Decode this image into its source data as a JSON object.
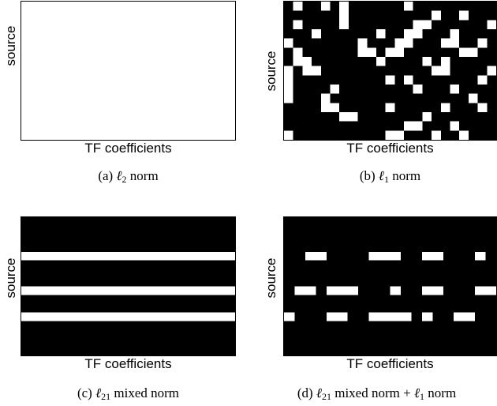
{
  "panels": [
    {
      "id": "a",
      "ylabel": "source",
      "xlabel": "TF coefficients",
      "caption": {
        "prefix": "(a)",
        "ell": "ℓ",
        "sub": "2",
        "rest": "norm"
      },
      "background": "#ffffff",
      "fill": "#000000",
      "grid": {
        "cols": 25,
        "rows": 16
      },
      "blocks": []
    },
    {
      "id": "b",
      "ylabel": "source",
      "xlabel": "TF coefficients",
      "caption": {
        "prefix": "(b)",
        "ell": "ℓ",
        "sub": "1",
        "rest": "norm"
      },
      "background": "#000000",
      "fill": "#ffffff",
      "grid": {
        "cols": 23,
        "rows": 15
      },
      "blocks": [
        [
          1,
          0
        ],
        [
          4,
          0
        ],
        [
          6,
          0
        ],
        [
          13,
          0
        ],
        [
          6,
          1
        ],
        [
          16,
          1
        ],
        [
          19,
          1
        ],
        [
          1,
          2
        ],
        [
          6,
          2
        ],
        [
          14,
          2
        ],
        [
          15,
          2
        ],
        [
          22,
          2
        ],
        [
          3,
          3
        ],
        [
          10,
          3
        ],
        [
          13,
          3
        ],
        [
          14,
          3
        ],
        [
          18,
          3
        ],
        [
          0,
          4
        ],
        [
          8,
          4
        ],
        [
          12,
          4
        ],
        [
          13,
          4
        ],
        [
          17,
          4
        ],
        [
          18,
          4
        ],
        [
          21,
          4
        ],
        [
          1,
          5
        ],
        [
          8,
          5
        ],
        [
          9,
          5
        ],
        [
          11,
          5
        ],
        [
          12,
          5
        ],
        [
          19,
          5
        ],
        [
          20,
          5
        ],
        [
          1,
          6
        ],
        [
          2,
          6
        ],
        [
          10,
          6
        ],
        [
          15,
          6
        ],
        [
          17,
          6
        ],
        [
          0,
          7
        ],
        [
          2,
          7
        ],
        [
          3,
          7
        ],
        [
          16,
          7
        ],
        [
          17,
          7
        ],
        [
          22,
          7
        ],
        [
          0,
          8
        ],
        [
          11,
          8
        ],
        [
          13,
          8
        ],
        [
          21,
          8
        ],
        [
          0,
          9
        ],
        [
          5,
          9
        ],
        [
          14,
          9
        ],
        [
          18,
          9
        ],
        [
          0,
          10
        ],
        [
          4,
          10
        ],
        [
          20,
          10
        ],
        [
          4,
          11
        ],
        [
          5,
          11
        ],
        [
          11,
          11
        ],
        [
          17,
          11
        ],
        [
          21,
          11
        ],
        [
          6,
          12
        ],
        [
          7,
          12
        ],
        [
          15,
          12
        ],
        [
          13,
          13
        ],
        [
          14,
          13
        ],
        [
          18,
          13
        ],
        [
          0,
          14
        ],
        [
          11,
          14
        ],
        [
          12,
          14
        ],
        [
          16,
          14
        ],
        [
          19,
          14
        ]
      ]
    },
    {
      "id": "c",
      "ylabel": "source",
      "xlabel": "TF coefficients",
      "caption": {
        "prefix": "(c)",
        "ell": "ℓ",
        "sub": "21",
        "rest": "mixed norm"
      },
      "background": "#000000",
      "fill": "#ffffff",
      "grid": {
        "cols": 1,
        "rows": 16
      },
      "rows": [
        4,
        8,
        11
      ]
    },
    {
      "id": "d",
      "ylabel": "source",
      "xlabel": "TF coefficients",
      "caption": {
        "prefix": "(d)",
        "ell": "ℓ",
        "sub": "21",
        "rest": "mixed norm + ",
        "ell2": "ℓ",
        "sub2": "1",
        "rest2": "norm"
      },
      "background": "#000000",
      "fill": "#ffffff",
      "grid": {
        "cols": 20,
        "rows": 16
      },
      "blocks": [
        [
          2,
          4
        ],
        [
          3,
          4
        ],
        [
          8,
          4
        ],
        [
          9,
          4
        ],
        [
          10,
          4
        ],
        [
          13,
          4
        ],
        [
          14,
          4
        ],
        [
          18,
          4
        ],
        [
          1,
          8
        ],
        [
          2,
          8
        ],
        [
          4,
          8
        ],
        [
          5,
          8
        ],
        [
          6,
          8
        ],
        [
          10,
          8
        ],
        [
          13,
          8
        ],
        [
          14,
          8
        ],
        [
          18,
          8
        ],
        [
          19,
          8
        ],
        [
          0,
          11
        ],
        [
          4,
          11
        ],
        [
          5,
          11
        ],
        [
          8,
          11
        ],
        [
          9,
          11
        ],
        [
          10,
          11
        ],
        [
          11,
          11
        ],
        [
          13,
          11
        ],
        [
          16,
          11
        ],
        [
          17,
          11
        ]
      ]
    }
  ]
}
